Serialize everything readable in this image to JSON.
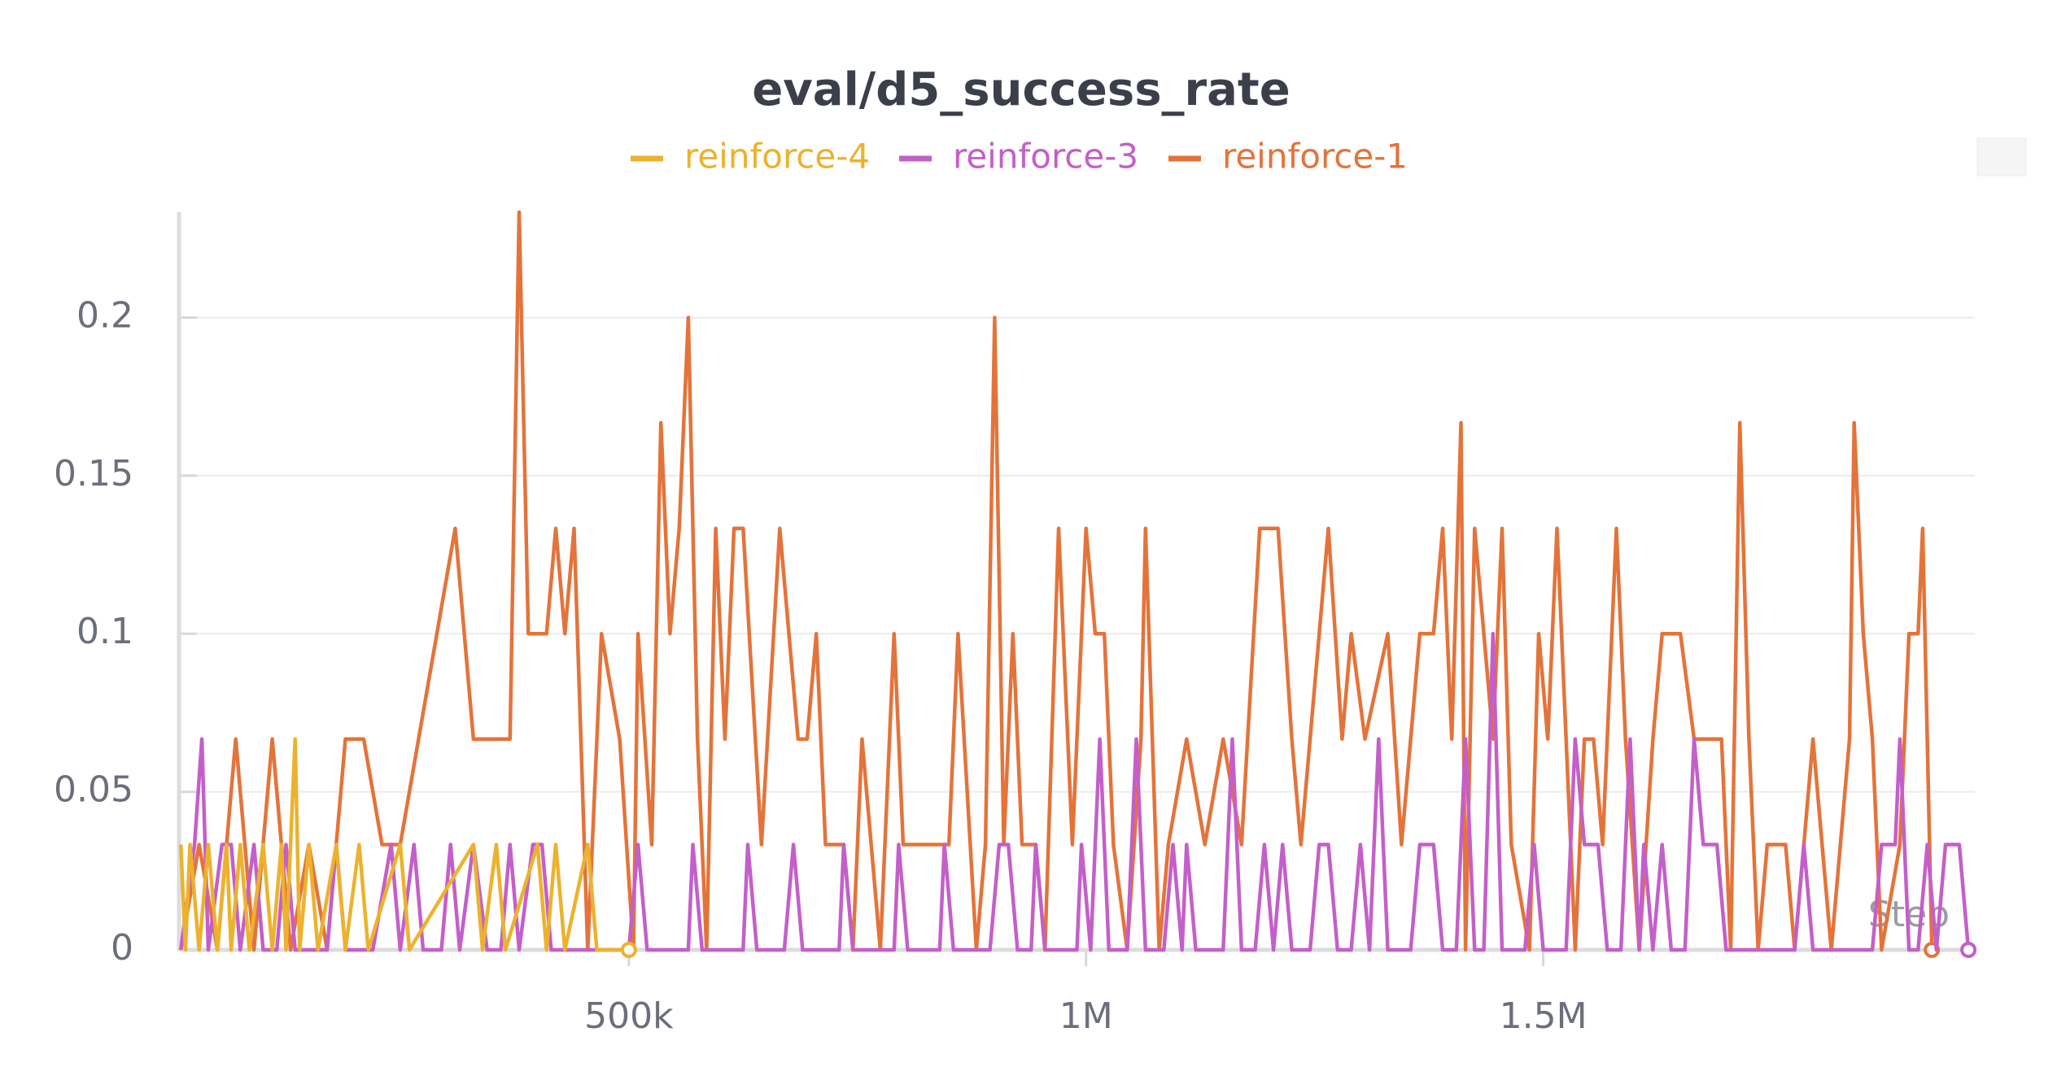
{
  "chart_data": {
    "type": "line",
    "title": "eval/d5_success_rate",
    "xlabel": "Step",
    "xlim": [
      8000,
      1972000
    ],
    "ylim": [
      0,
      0.2333
    ],
    "xticks": [
      {
        "value": 500000,
        "label": "500k"
      },
      {
        "value": 1000000,
        "label": "1M"
      },
      {
        "value": 1500000,
        "label": "1.5M"
      }
    ],
    "yticks": [
      0,
      0.05,
      0.1,
      0.15,
      0.2
    ],
    "grid": true,
    "series": [
      {
        "name": "reinforce-4",
        "color": "#ecb22e",
        "x": [
          10000,
          15000,
          20000,
          30000,
          40000,
          50000,
          60000,
          65000,
          75000,
          85000,
          100000,
          110000,
          120000,
          125000,
          135000,
          140000,
          150000,
          160000,
          180000,
          190000,
          205000,
          215000,
          250000,
          260000,
          330000,
          340000,
          355000,
          365000,
          400000,
          410000,
          420000,
          430000,
          455000,
          465000,
          500000
        ],
        "values": [
          0.0333,
          0,
          0.0333,
          0,
          0.0333,
          0,
          0.0333,
          0,
          0.0333,
          0,
          0.0333,
          0,
          0.0333,
          0,
          0.0667,
          0,
          0.0333,
          0,
          0.0333,
          0,
          0.0333,
          0,
          0.0333,
          0,
          0.0333,
          0,
          0.0333,
          0,
          0.0333,
          0,
          0.0333,
          0,
          0.0333,
          0,
          0
        ]
      },
      {
        "name": "reinforce-3",
        "color": "#c45fc9",
        "x": [
          10000,
          25000,
          33000,
          40000,
          55000,
          65000,
          75000,
          90000,
          100000,
          115000,
          125000,
          135000,
          170000,
          180000,
          190000,
          220000,
          240000,
          250000,
          265000,
          275000,
          295000,
          305000,
          315000,
          330000,
          345000,
          360000,
          370000,
          380000,
          395000,
          405000,
          415000,
          500000,
          510000,
          520000,
          565000,
          570000,
          580000,
          625000,
          630000,
          640000,
          670000,
          680000,
          690000,
          730000,
          735000,
          745000,
          790000,
          795000,
          805000,
          840000,
          845000,
          855000,
          895000,
          905000,
          915000,
          925000,
          940000,
          945000,
          955000,
          990000,
          995000,
          1005000,
          1015000,
          1025000,
          1045000,
          1055000,
          1065000,
          1085000,
          1095000,
          1105000,
          1110000,
          1120000,
          1150000,
          1160000,
          1170000,
          1185000,
          1195000,
          1205000,
          1215000,
          1225000,
          1245000,
          1255000,
          1265000,
          1275000,
          1290000,
          1300000,
          1310000,
          1320000,
          1330000,
          1355000,
          1365000,
          1380000,
          1390000,
          1405000,
          1415000,
          1425000,
          1435000,
          1445000,
          1455000,
          1465000,
          1480000,
          1490000,
          1500000,
          1525000,
          1535000,
          1545000,
          1560000,
          1570000,
          1585000,
          1595000,
          1605000,
          1610000,
          1620000,
          1630000,
          1640000,
          1655000,
          1665000,
          1675000,
          1690000,
          1700000,
          1775000,
          1785000,
          1795000,
          1860000,
          1870000,
          1885000,
          1890000,
          1900000,
          1910000,
          1920000,
          1930000,
          1940000,
          1955000,
          1965000
        ],
        "values": [
          0,
          0.0333,
          0.0667,
          0,
          0.0333,
          0.0333,
          0,
          0.0333,
          0,
          0,
          0.0333,
          0,
          0,
          0.0333,
          0,
          0,
          0.0333,
          0,
          0.0333,
          0,
          0,
          0.0333,
          0,
          0.0333,
          0,
          0,
          0.0333,
          0,
          0.0333,
          0.0333,
          0,
          0,
          0.0333,
          0,
          0,
          0.0333,
          0,
          0,
          0.0333,
          0,
          0,
          0.0333,
          0,
          0,
          0.0333,
          0,
          0,
          0.0333,
          0,
          0,
          0.0333,
          0,
          0,
          0.0333,
          0.0333,
          0,
          0,
          0.0333,
          0,
          0,
          0.0333,
          0,
          0.0667,
          0,
          0,
          0.0667,
          0,
          0,
          0.0333,
          0,
          0.0333,
          0,
          0,
          0.0667,
          0,
          0,
          0.0333,
          0,
          0.0333,
          0,
          0,
          0.0333,
          0.0333,
          0,
          0,
          0.0333,
          0,
          0.0667,
          0,
          0,
          0.0333,
          0.0333,
          0,
          0,
          0.0667,
          0,
          0,
          0.1,
          0,
          0,
          0,
          0.0333,
          0,
          0,
          0.0667,
          0.0333,
          0.0333,
          0,
          0,
          0.0667,
          0,
          0.0333,
          0,
          0.0333,
          0,
          0,
          0.0667,
          0.0333,
          0.0333,
          0,
          0,
          0.0333,
          0,
          0,
          0.0333,
          0.0333,
          0.0667,
          0,
          0,
          0.0333,
          0,
          0.0333,
          0.0333,
          0
        ]
      },
      {
        "name": "reinforce-1",
        "color": "#e4733a",
        "x": [
          10000,
          30000,
          50000,
          70000,
          90000,
          110000,
          130000,
          150000,
          170000,
          190000,
          210000,
          230000,
          250000,
          270000,
          290000,
          310000,
          330000,
          350000,
          370000,
          380000,
          390000,
          410000,
          420000,
          430000,
          440000,
          455000,
          470000,
          490000,
          505000,
          510000,
          525000,
          535000,
          545000,
          555000,
          565000,
          575000,
          585000,
          595000,
          605000,
          615000,
          625000,
          645000,
          665000,
          685000,
          695000,
          705000,
          715000,
          735000,
          745000,
          755000,
          775000,
          790000,
          800000,
          850000,
          860000,
          880000,
          890000,
          900000,
          910000,
          920000,
          930000,
          945000,
          955000,
          970000,
          985000,
          1000000,
          1010000,
          1020000,
          1030000,
          1045000,
          1060000,
          1065000,
          1080000,
          1090000,
          1110000,
          1130000,
          1150000,
          1170000,
          1190000,
          1210000,
          1225000,
          1235000,
          1265000,
          1280000,
          1290000,
          1305000,
          1330000,
          1345000,
          1365000,
          1380000,
          1390000,
          1400000,
          1410000,
          1415000,
          1425000,
          1435000,
          1445000,
          1455000,
          1465000,
          1485000,
          1495000,
          1505000,
          1515000,
          1535000,
          1545000,
          1555000,
          1565000,
          1580000,
          1590000,
          1605000,
          1620000,
          1630000,
          1650000,
          1665000,
          1695000,
          1705000,
          1715000,
          1725000,
          1735000,
          1745000,
          1765000,
          1775000,
          1785000,
          1795000,
          1805000,
          1815000,
          1835000,
          1840000,
          1850000,
          1860000,
          1870000,
          1890000,
          1900000,
          1910000,
          1915000,
          1925000
        ],
        "values": [
          0,
          0.0333,
          0,
          0.0667,
          0,
          0.0667,
          0,
          0.0333,
          0,
          0.0667,
          0.0667,
          0.0333,
          0.0333,
          0.0667,
          0.1,
          0.1333,
          0.0667,
          0.0667,
          0.0667,
          0.2333,
          0.1,
          0.1,
          0.1333,
          0.1,
          0.1333,
          0,
          0.1,
          0.0667,
          0,
          0.1,
          0.0333,
          0.1667,
          0.1,
          0.1333,
          0.2,
          0.0667,
          0,
          0.1333,
          0.0667,
          0.1333,
          0.1333,
          0.0333,
          0.1333,
          0.0667,
          0.0667,
          0.1,
          0.0333,
          0.0333,
          0,
          0.0667,
          0,
          0.1,
          0.0333,
          0.0333,
          0.1,
          0,
          0.0333,
          0.2,
          0.0333,
          0.1,
          0.0333,
          0.0333,
          0,
          0.1333,
          0.0333,
          0.1333,
          0.1,
          0.1,
          0.0333,
          0,
          0.0667,
          0.1333,
          0,
          0.0333,
          0.0667,
          0.0333,
          0.0667,
          0.0333,
          0.1333,
          0.1333,
          0.0667,
          0.0333,
          0.1333,
          0.0667,
          0.1,
          0.0667,
          0.1,
          0.0333,
          0.1,
          0.1,
          0.1333,
          0.0667,
          0.1667,
          0,
          0.1333,
          0.1,
          0.0667,
          0.1333,
          0.0333,
          0,
          0.1,
          0.0667,
          0.1333,
          0,
          0.0667,
          0.0667,
          0.0333,
          0.1333,
          0.0667,
          0,
          0.0667,
          0.1,
          0.1,
          0.0667,
          0.0667,
          0,
          0.1667,
          0.0667,
          0,
          0.0333,
          0.0333,
          0,
          0.0333,
          0.0667,
          0.0333,
          0,
          0.0667,
          0.1667,
          0.1,
          0.0667,
          0,
          0.0333,
          0.1,
          0.1,
          0.1333,
          0
        ]
      }
    ]
  }
}
